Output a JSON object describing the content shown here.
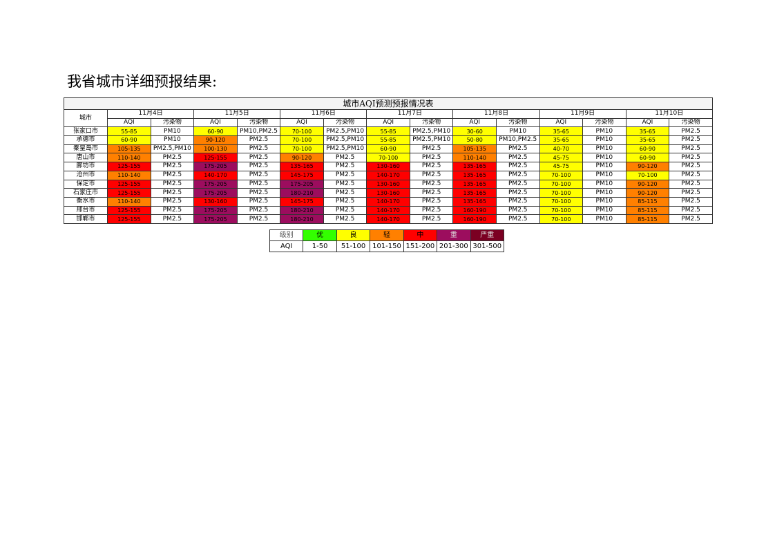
{
  "heading": "我省城市详细预报结果:",
  "table": {
    "caption": "城市AQI预测预报情况表",
    "city_header": "城市",
    "dates": [
      "11月4日",
      "11月5日",
      "11月6日",
      "11月7日",
      "11月8日",
      "11月9日",
      "11月10日"
    ],
    "sub_headers": [
      "AQI",
      "污染物"
    ],
    "rows": [
      {
        "city": "张家口市",
        "cells": [
          {
            "aqi": "55-85",
            "pollutant": "PM10",
            "color": "#ffff00"
          },
          {
            "aqi": "60-90",
            "pollutant": "PM10,PM2.5",
            "color": "#ffff00"
          },
          {
            "aqi": "70-100",
            "pollutant": "PM2.5,PM10",
            "color": "#ffff00"
          },
          {
            "aqi": "55-85",
            "pollutant": "PM2.5,PM10",
            "color": "#ffff00"
          },
          {
            "aqi": "30-60",
            "pollutant": "PM10",
            "color": "#ffff00"
          },
          {
            "aqi": "35-65",
            "pollutant": "PM10",
            "color": "#ffff00"
          },
          {
            "aqi": "35-65",
            "pollutant": "PM2.5",
            "color": "#ffff00"
          }
        ]
      },
      {
        "city": "承德市",
        "cells": [
          {
            "aqi": "60-90",
            "pollutant": "PM10",
            "color": "#ffff00"
          },
          {
            "aqi": "90-120",
            "pollutant": "PM2.5",
            "color": "#ff8000"
          },
          {
            "aqi": "70-100",
            "pollutant": "PM2.5,PM10",
            "color": "#ffff00"
          },
          {
            "aqi": "55-85",
            "pollutant": "PM2.5,PM10",
            "color": "#ffff00"
          },
          {
            "aqi": "50-80",
            "pollutant": "PM10,PM2.5",
            "color": "#ffff00"
          },
          {
            "aqi": "35-65",
            "pollutant": "PM10",
            "color": "#ffff00"
          },
          {
            "aqi": "35-65",
            "pollutant": "PM2.5",
            "color": "#ffff00"
          }
        ]
      },
      {
        "city": "秦皇岛市",
        "cells": [
          {
            "aqi": "105-135",
            "pollutant": "PM2.5,PM10",
            "color": "#ff8000"
          },
          {
            "aqi": "100-130",
            "pollutant": "PM2.5",
            "color": "#ff8000"
          },
          {
            "aqi": "70-100",
            "pollutant": "PM2.5,PM10",
            "color": "#ffff00"
          },
          {
            "aqi": "60-90",
            "pollutant": "PM2.5",
            "color": "#ffff00"
          },
          {
            "aqi": "105-135",
            "pollutant": "PM2.5",
            "color": "#ff8000"
          },
          {
            "aqi": "40-70",
            "pollutant": "PM10",
            "color": "#ffff00"
          },
          {
            "aqi": "60-90",
            "pollutant": "PM2.5",
            "color": "#ffff00"
          }
        ]
      },
      {
        "city": "唐山市",
        "cells": [
          {
            "aqi": "110-140",
            "pollutant": "PM2.5",
            "color": "#ff8000"
          },
          {
            "aqi": "125-155",
            "pollutant": "PM2.5",
            "color": "#ff0000"
          },
          {
            "aqi": "90-120",
            "pollutant": "PM2.5",
            "color": "#ff8000"
          },
          {
            "aqi": "70-100",
            "pollutant": "PM2.5",
            "color": "#ffff00"
          },
          {
            "aqi": "110-140",
            "pollutant": "PM2.5",
            "color": "#ff8000"
          },
          {
            "aqi": "45-75",
            "pollutant": "PM10",
            "color": "#ffff00"
          },
          {
            "aqi": "60-90",
            "pollutant": "PM2.5",
            "color": "#ffff00"
          }
        ]
      },
      {
        "city": "廊坊市",
        "cells": [
          {
            "aqi": "125-155",
            "pollutant": "PM2.5",
            "color": "#ff0000"
          },
          {
            "aqi": "175-205",
            "pollutant": "PM2.5",
            "color": "#9c0d5e"
          },
          {
            "aqi": "135-165",
            "pollutant": "PM2.5",
            "color": "#ff0000"
          },
          {
            "aqi": "130-160",
            "pollutant": "PM2.5",
            "color": "#ff0000"
          },
          {
            "aqi": "135-165",
            "pollutant": "PM2.5",
            "color": "#ff0000"
          },
          {
            "aqi": "45-75",
            "pollutant": "PM10",
            "color": "#ffff00"
          },
          {
            "aqi": "90-120",
            "pollutant": "PM2.5",
            "color": "#ff8000"
          }
        ]
      },
      {
        "city": "沧州市",
        "cells": [
          {
            "aqi": "110-140",
            "pollutant": "PM2.5",
            "color": "#ff8000"
          },
          {
            "aqi": "140-170",
            "pollutant": "PM2.5",
            "color": "#ff0000"
          },
          {
            "aqi": "145-175",
            "pollutant": "PM2.5",
            "color": "#ff0000"
          },
          {
            "aqi": "140-170",
            "pollutant": "PM2.5",
            "color": "#ff0000"
          },
          {
            "aqi": "135-165",
            "pollutant": "PM2.5",
            "color": "#ff0000"
          },
          {
            "aqi": "70-100",
            "pollutant": "PM10",
            "color": "#ffff00"
          },
          {
            "aqi": "70-100",
            "pollutant": "PM2.5",
            "color": "#ffff00"
          }
        ]
      },
      {
        "city": "保定市",
        "cells": [
          {
            "aqi": "125-155",
            "pollutant": "PM2.5",
            "color": "#ff0000"
          },
          {
            "aqi": "175-205",
            "pollutant": "PM2.5",
            "color": "#9c0d5e"
          },
          {
            "aqi": "175-205",
            "pollutant": "PM2.5",
            "color": "#9c0d5e"
          },
          {
            "aqi": "130-160",
            "pollutant": "PM2.5",
            "color": "#ff0000"
          },
          {
            "aqi": "135-165",
            "pollutant": "PM2.5",
            "color": "#ff0000"
          },
          {
            "aqi": "70-100",
            "pollutant": "PM10",
            "color": "#ffff00"
          },
          {
            "aqi": "90-120",
            "pollutant": "PM2.5",
            "color": "#ff8000"
          }
        ]
      },
      {
        "city": "石家庄市",
        "cells": [
          {
            "aqi": "125-155",
            "pollutant": "PM2.5",
            "color": "#ff0000"
          },
          {
            "aqi": "175-205",
            "pollutant": "PM2.5",
            "color": "#9c0d5e"
          },
          {
            "aqi": "180-210",
            "pollutant": "PM2.5",
            "color": "#9c0d5e"
          },
          {
            "aqi": "130-160",
            "pollutant": "PM2.5",
            "color": "#ff0000"
          },
          {
            "aqi": "135-165",
            "pollutant": "PM2.5",
            "color": "#ff0000"
          },
          {
            "aqi": "70-100",
            "pollutant": "PM10",
            "color": "#ffff00"
          },
          {
            "aqi": "90-120",
            "pollutant": "PM2.5",
            "color": "#ff8000"
          }
        ]
      },
      {
        "city": "衡水市",
        "cells": [
          {
            "aqi": "110-140",
            "pollutant": "PM2.5",
            "color": "#ff8000"
          },
          {
            "aqi": "130-160",
            "pollutant": "PM2.5",
            "color": "#ff0000"
          },
          {
            "aqi": "145-175",
            "pollutant": "PM2.5",
            "color": "#ff0000"
          },
          {
            "aqi": "140-170",
            "pollutant": "PM2.5",
            "color": "#ff0000"
          },
          {
            "aqi": "135-165",
            "pollutant": "PM2.5",
            "color": "#ff0000"
          },
          {
            "aqi": "70-100",
            "pollutant": "PM10",
            "color": "#ffff00"
          },
          {
            "aqi": "85-115",
            "pollutant": "PM2.5",
            "color": "#ff8000"
          }
        ]
      },
      {
        "city": "邢台市",
        "cells": [
          {
            "aqi": "125-155",
            "pollutant": "PM2.5",
            "color": "#ff0000"
          },
          {
            "aqi": "175-205",
            "pollutant": "PM2.5",
            "color": "#9c0d5e"
          },
          {
            "aqi": "180-210",
            "pollutant": "PM2.5",
            "color": "#9c0d5e"
          },
          {
            "aqi": "140-170",
            "pollutant": "PM2.5",
            "color": "#ff0000"
          },
          {
            "aqi": "160-190",
            "pollutant": "PM2.5",
            "color": "#ff0000"
          },
          {
            "aqi": "70-100",
            "pollutant": "PM10",
            "color": "#ffff00"
          },
          {
            "aqi": "85-115",
            "pollutant": "PM2.5",
            "color": "#ff8000"
          }
        ]
      },
      {
        "city": "邯郸市",
        "cells": [
          {
            "aqi": "125-155",
            "pollutant": "PM2.5",
            "color": "#ff0000"
          },
          {
            "aqi": "175-205",
            "pollutant": "PM2.5",
            "color": "#9c0d5e"
          },
          {
            "aqi": "180-210",
            "pollutant": "PM2.5",
            "color": "#9c0d5e"
          },
          {
            "aqi": "140-170",
            "pollutant": "PM2.5",
            "color": "#ff0000"
          },
          {
            "aqi": "160-190",
            "pollutant": "PM2.5",
            "color": "#ff0000"
          },
          {
            "aqi": "70-100",
            "pollutant": "PM10",
            "color": "#ffff00"
          },
          {
            "aqi": "85-115",
            "pollutant": "PM2.5",
            "color": "#ff8000"
          }
        ]
      }
    ]
  },
  "legend": {
    "rows": [
      [
        "级别",
        "优",
        "良",
        "轻",
        "中",
        "重",
        "严重"
      ],
      [
        "AQI",
        "1-50",
        "51-100",
        "101-150",
        "151-200",
        "201-300",
        "301-500"
      ]
    ],
    "colors": [
      "#ffffff",
      "#33ff00",
      "#ffff00",
      "#ff8000",
      "#ff0000",
      "#9c0d5e",
      "#7b0022"
    ]
  }
}
